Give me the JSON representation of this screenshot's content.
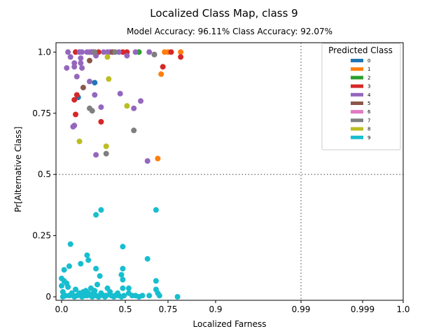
{
  "chart_data": {
    "type": "scatter",
    "title": "Localized Class Map, class 9",
    "subtitle": "Model Accuracy: 96.11% Class Accuracy: 92.07%",
    "xlabel": "Localized Farness",
    "ylabel": "Pr[Alternative Class]",
    "xlim": [
      -0.02,
      1.0
    ],
    "ylim": [
      -0.01,
      1.05
    ],
    "x_scale": "quantile-stretched (0 to 0.9 linear, then 0.9, 0.99, 0.999, 1.0 equally spaced)",
    "x_ticks": [
      {
        "value": 0.0,
        "label": "0.0"
      },
      {
        "value": 0.5,
        "label": "0.5"
      },
      {
        "value": 0.75,
        "label": "0.75"
      },
      {
        "value": 0.9,
        "label": "0.9"
      },
      {
        "value": 0.99,
        "label": "0.99"
      },
      {
        "value": 0.999,
        "label": "0.999"
      },
      {
        "value": 1.0,
        "label": "1.0"
      }
    ],
    "y_ticks": [
      {
        "value": 0.0,
        "label": "0"
      },
      {
        "value": 0.25,
        "label": "0.25"
      },
      {
        "value": 0.5,
        "label": "0.5"
      },
      {
        "value": 0.75,
        "label": "0.75"
      },
      {
        "value": 1.0,
        "label": "1.0"
      }
    ],
    "reference_lines": {
      "x": 0.99,
      "y": 0.5,
      "style": "dotted",
      "color": "#808080"
    },
    "grid": false,
    "legend": {
      "title": "Predicted Class",
      "placement": "top-right",
      "entries": [
        {
          "label": "0",
          "color": "#1f77b4"
        },
        {
          "label": "1",
          "color": "#ff7f0e"
        },
        {
          "label": "2",
          "color": "#2ca02c"
        },
        {
          "label": "3",
          "color": "#d62728"
        },
        {
          "label": "4",
          "color": "#9467bd"
        },
        {
          "label": "5",
          "color": "#8c564b"
        },
        {
          "label": "6",
          "color": "#e377c2"
        },
        {
          "label": "7",
          "color": "#7f7f7f"
        },
        {
          "label": "8",
          "color": "#bcbd22"
        },
        {
          "label": "9",
          "color": "#17becf"
        }
      ]
    },
    "series": [
      {
        "name": "0",
        "color": "#1f77b4",
        "points": [
          [
            0.26,
            0.875
          ],
          [
            0.13,
            0.815
          ]
        ]
      },
      {
        "name": "1",
        "color": "#ff7f0e",
        "points": [
          [
            0.73,
            1.0
          ],
          [
            0.79,
            1.0
          ],
          [
            0.75,
            1.0
          ],
          [
            0.71,
            0.91
          ],
          [
            0.69,
            0.565
          ]
        ]
      },
      {
        "name": "2",
        "color": "#2ca02c",
        "points": [
          [
            0.58,
            1.0
          ]
        ]
      },
      {
        "name": "3",
        "color": "#d62728",
        "points": [
          [
            0.11,
            1.0
          ],
          [
            0.24,
            1.0
          ],
          [
            0.29,
            1.0
          ],
          [
            0.48,
            1.0
          ],
          [
            0.51,
            1.0
          ],
          [
            0.76,
            1.0
          ],
          [
            0.79,
            0.98
          ],
          [
            0.72,
            0.94
          ],
          [
            0.12,
            0.825
          ],
          [
            0.1,
            0.805
          ],
          [
            0.11,
            0.745
          ],
          [
            0.31,
            0.715
          ]
        ]
      },
      {
        "name": "4",
        "color": "#9467bd",
        "points": [
          [
            0.05,
            1.0
          ],
          [
            0.14,
            1.0
          ],
          [
            0.16,
            1.0
          ],
          [
            0.2,
            1.0
          ],
          [
            0.22,
            1.0
          ],
          [
            0.25,
            1.0
          ],
          [
            0.33,
            1.0
          ],
          [
            0.36,
            1.0
          ],
          [
            0.38,
            1.0
          ],
          [
            0.45,
            1.0
          ],
          [
            0.56,
            1.0
          ],
          [
            0.64,
            1.0
          ],
          [
            0.07,
            0.98
          ],
          [
            0.15,
            0.975
          ],
          [
            0.27,
            0.985
          ],
          [
            0.51,
            0.985
          ],
          [
            0.04,
            0.935
          ],
          [
            0.1,
            0.955
          ],
          [
            0.1,
            0.94
          ],
          [
            0.16,
            0.935
          ],
          [
            0.15,
            0.955
          ],
          [
            0.12,
            0.9
          ],
          [
            0.22,
            0.88
          ],
          [
            0.26,
            0.825
          ],
          [
            0.46,
            0.83
          ],
          [
            0.31,
            0.775
          ],
          [
            0.59,
            0.8
          ],
          [
            0.55,
            0.77
          ],
          [
            0.1,
            0.7
          ],
          [
            0.09,
            0.695
          ],
          [
            0.27,
            0.58
          ],
          [
            0.63,
            0.555
          ]
        ]
      },
      {
        "name": "5",
        "color": "#8c564b",
        "points": [
          [
            0.22,
            0.965
          ],
          [
            0.67,
            0.99
          ],
          [
            0.4,
            1.0
          ],
          [
            0.17,
            0.855
          ]
        ]
      },
      {
        "name": "7",
        "color": "#7f7f7f",
        "points": [
          [
            0.26,
            1.0
          ],
          [
            0.42,
            1.0
          ],
          [
            0.67,
            0.99
          ],
          [
            0.22,
            0.77
          ],
          [
            0.24,
            0.76
          ],
          [
            0.55,
            0.68
          ],
          [
            0.35,
            0.585
          ]
        ]
      },
      {
        "name": "8",
        "color": "#bcbd22",
        "points": [
          [
            0.36,
            0.98
          ],
          [
            0.37,
            0.89
          ],
          [
            0.51,
            0.78
          ],
          [
            0.14,
            0.635
          ],
          [
            0.35,
            0.615
          ]
        ]
      },
      {
        "name": "9",
        "color": "#17becf",
        "points": [
          [
            0.31,
            0.355
          ],
          [
            0.68,
            0.355
          ],
          [
            0.27,
            0.335
          ],
          [
            0.07,
            0.215
          ],
          [
            0.48,
            0.205
          ],
          [
            0.2,
            0.17
          ],
          [
            0.63,
            0.155
          ],
          [
            0.21,
            0.15
          ],
          [
            0.15,
            0.135
          ],
          [
            0.06,
            0.125
          ],
          [
            0.27,
            0.115
          ],
          [
            0.48,
            0.115
          ],
          [
            0.02,
            0.11
          ],
          [
            0.47,
            0.09
          ],
          [
            0.3,
            0.085
          ],
          [
            0.68,
            0.065
          ],
          [
            0.0,
            0.075
          ],
          [
            0.02,
            0.065
          ],
          [
            0.48,
            0.07
          ],
          [
            0.04,
            0.055
          ],
          [
            0.0,
            0.045
          ],
          [
            0.28,
            0.05
          ],
          [
            0.05,
            0.04
          ],
          [
            0.23,
            0.035
          ],
          [
            0.36,
            0.035
          ],
          [
            0.48,
            0.035
          ],
          [
            0.52,
            0.035
          ],
          [
            0.68,
            0.03
          ],
          [
            0.11,
            0.03
          ],
          [
            0.19,
            0.025
          ],
          [
            0.26,
            0.025
          ],
          [
            0.01,
            0.02
          ],
          [
            0.08,
            0.015
          ],
          [
            0.14,
            0.015
          ],
          [
            0.17,
            0.02
          ],
          [
            0.21,
            0.015
          ],
          [
            0.25,
            0.015
          ],
          [
            0.31,
            0.015
          ],
          [
            0.38,
            0.02
          ],
          [
            0.44,
            0.015
          ],
          [
            0.52,
            0.015
          ],
          [
            0.69,
            0.015
          ],
          [
            0.03,
            0.005
          ],
          [
            0.06,
            0.005
          ],
          [
            0.09,
            0.005
          ],
          [
            0.12,
            0.005
          ],
          [
            0.15,
            0.005
          ],
          [
            0.18,
            0.005
          ],
          [
            0.2,
            0.005
          ],
          [
            0.23,
            0.005
          ],
          [
            0.27,
            0.005
          ],
          [
            0.3,
            0.005
          ],
          [
            0.33,
            0.005
          ],
          [
            0.35,
            0.005
          ],
          [
            0.39,
            0.005
          ],
          [
            0.42,
            0.005
          ],
          [
            0.45,
            0.005
          ],
          [
            0.49,
            0.005
          ],
          [
            0.54,
            0.005
          ],
          [
            0.56,
            0.005
          ],
          [
            0.6,
            0.005
          ],
          [
            0.64,
            0.005
          ],
          [
            0.7,
            0.005
          ],
          [
            0.78,
            0.0
          ],
          [
            0.01,
            0.0
          ],
          [
            0.1,
            0.0
          ],
          [
            0.16,
            0.0
          ],
          [
            0.24,
            0.0
          ],
          [
            0.29,
            0.0
          ],
          [
            0.34,
            0.0
          ],
          [
            0.41,
            0.0
          ],
          [
            0.47,
            0.0
          ],
          [
            0.58,
            0.0
          ]
        ]
      }
    ]
  }
}
